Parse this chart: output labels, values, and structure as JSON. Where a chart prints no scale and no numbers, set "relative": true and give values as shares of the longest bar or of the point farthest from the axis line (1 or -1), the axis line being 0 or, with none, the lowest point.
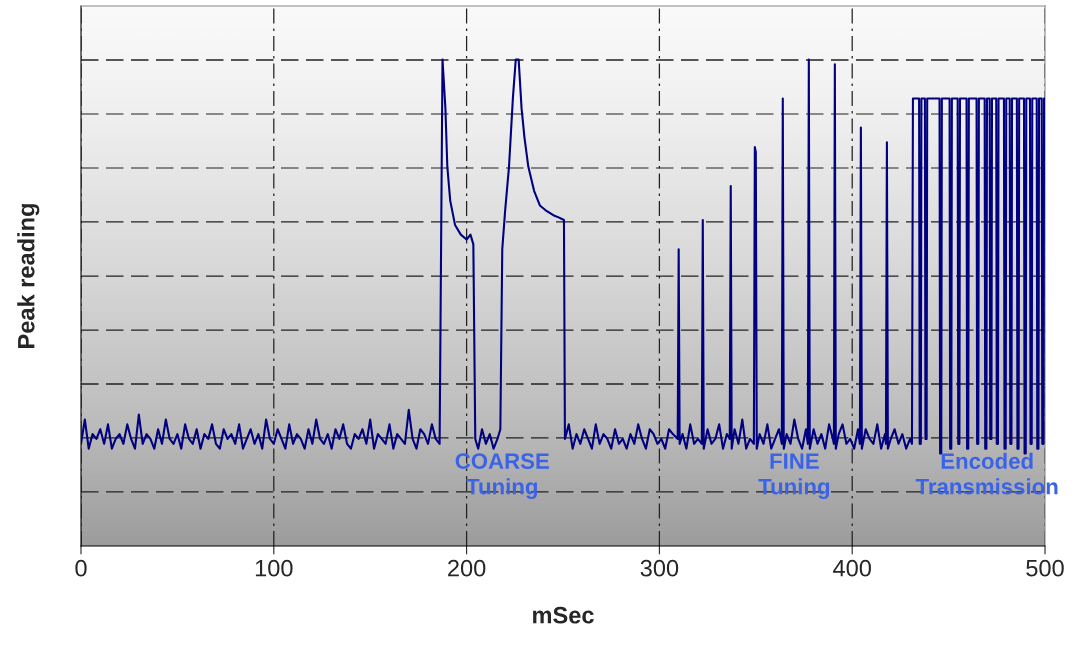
{
  "chart_data": {
    "type": "line",
    "relative": true,
    "xlabel": "mSec",
    "ylabel": "Peak reading",
    "xlim": [
      0,
      500
    ],
    "xticks": [
      0,
      100,
      200,
      300,
      400,
      500
    ],
    "grid": true,
    "marker": "none",
    "line_style": "solid",
    "legend": false,
    "annotations": [
      "COARSE\nTuning",
      "FINE\nTuning",
      "Encoded\nTransmission"
    ],
    "series": [
      {
        "color": "#000080",
        "x": [
          0,
          2,
          4,
          6,
          8,
          10,
          12,
          14,
          16,
          18,
          20,
          22,
          24,
          26,
          28,
          30,
          32,
          34,
          36,
          38,
          40,
          42,
          44,
          46,
          48,
          50,
          52,
          54,
          56,
          58,
          60,
          62,
          64,
          66,
          68,
          70,
          72,
          74,
          76,
          78,
          80,
          82,
          84,
          86,
          88,
          90,
          92,
          94,
          96,
          98,
          100,
          102,
          104,
          106,
          108,
          110,
          112,
          114,
          116,
          118,
          120,
          122,
          124,
          126,
          128,
          130,
          132,
          134,
          136,
          138,
          140,
          142,
          144,
          146,
          148,
          150,
          152,
          154,
          156,
          158,
          160,
          162,
          164,
          166,
          168,
          170,
          172,
          174,
          176,
          178,
          180,
          182,
          184,
          186,
          187.5,
          189,
          190,
          191.5,
          194,
          197,
          200,
          202,
          203.5,
          204.5,
          206,
          208,
          210,
          212,
          214,
          216,
          217.5,
          218.5,
          220,
          222,
          224,
          225.5,
          227,
          228.5,
          230,
          232,
          235,
          238,
          241,
          245,
          248,
          250.5,
          251,
          253,
          255,
          257,
          259,
          261,
          263,
          265,
          267,
          269,
          271,
          273,
          275,
          277,
          279,
          281,
          283,
          285,
          287,
          289,
          291,
          293,
          295,
          297,
          299,
          301,
          303,
          305,
          307,
          309.5,
          310,
          310.5,
          312,
          314,
          316,
          318,
          320,
          322,
          322.5,
          323,
          325,
          327,
          329,
          331,
          333,
          335,
          336.5,
          337,
          337.5,
          339,
          341,
          343,
          345,
          347,
          349,
          349.5,
          350,
          350.5,
          352,
          354,
          356,
          358,
          360,
          362,
          363.5,
          364,
          364.5,
          366,
          368,
          370,
          372,
          374,
          376,
          377,
          377.5,
          378,
          380,
          382,
          384,
          386,
          388,
          390,
          390.5,
          391,
          391.5,
          393,
          395,
          397,
          399,
          401,
          403,
          404,
          404.5,
          405,
          407,
          409,
          411,
          413,
          415,
          417,
          417.5,
          418,
          418.5,
          420,
          422,
          424,
          426,
          428,
          430,
          431,
          431.5,
          434.7,
          435,
          435.6,
          435.9,
          437.7,
          438,
          438.6,
          438.9,
          445.3,
          445.6,
          446.2,
          446.5,
          450.5,
          450.8,
          451.4,
          451.7,
          454.7,
          455,
          455.6,
          455.9,
          459.3,
          459.6,
          460.2,
          460.5,
          464.5,
          464.8,
          465.4,
          465.7,
          468.7,
          469,
          469.6,
          469.9,
          471.3,
          471.6,
          472.2,
          472.5,
          474.7,
          475,
          475.6,
          475.9,
          478.7,
          479,
          479.6,
          479.9,
          481.7,
          482,
          482.6,
          482.9,
          485.4,
          485.7,
          486.3,
          486.6,
          489.1,
          489.4,
          490,
          490.3,
          492.2,
          492.5,
          493.1,
          493.4,
          495.7,
          496,
          496.6,
          496.9,
          498.3,
          498.6,
          499.2,
          499.5,
          500
        ],
        "values": [
          0.21,
          0.26,
          0.2,
          0.23,
          0.22,
          0.24,
          0.21,
          0.25,
          0.2,
          0.22,
          0.23,
          0.21,
          0.25,
          0.22,
          0.2,
          0.27,
          0.21,
          0.23,
          0.22,
          0.2,
          0.24,
          0.21,
          0.26,
          0.22,
          0.21,
          0.23,
          0.2,
          0.25,
          0.22,
          0.21,
          0.24,
          0.2,
          0.23,
          0.22,
          0.25,
          0.21,
          0.2,
          0.24,
          0.22,
          0.23,
          0.21,
          0.25,
          0.2,
          0.22,
          0.24,
          0.21,
          0.23,
          0.2,
          0.26,
          0.22,
          0.21,
          0.24,
          0.22,
          0.2,
          0.25,
          0.21,
          0.23,
          0.22,
          0.2,
          0.24,
          0.21,
          0.26,
          0.22,
          0.21,
          0.23,
          0.2,
          0.24,
          0.22,
          0.25,
          0.21,
          0.2,
          0.23,
          0.22,
          0.24,
          0.21,
          0.26,
          0.2,
          0.23,
          0.22,
          0.21,
          0.25,
          0.2,
          0.23,
          0.22,
          0.21,
          0.28,
          0.22,
          0.2,
          0.24,
          0.23,
          0.21,
          0.25,
          0.22,
          0.21,
          1.0,
          0.9,
          0.78,
          0.71,
          0.66,
          0.64,
          0.63,
          0.64,
          0.62,
          0.22,
          0.2,
          0.24,
          0.21,
          0.23,
          0.2,
          0.22,
          0.24,
          0.61,
          0.69,
          0.78,
          0.92,
          1.0,
          1.0,
          0.9,
          0.84,
          0.78,
          0.73,
          0.7,
          0.69,
          0.68,
          0.675,
          0.67,
          0.22,
          0.25,
          0.2,
          0.23,
          0.21,
          0.24,
          0.22,
          0.2,
          0.25,
          0.21,
          0.23,
          0.22,
          0.2,
          0.24,
          0.21,
          0.22,
          0.2,
          0.23,
          0.21,
          0.25,
          0.22,
          0.2,
          0.24,
          0.23,
          0.21,
          0.22,
          0.2,
          0.24,
          0.23,
          0.22,
          0.61,
          0.21,
          0.23,
          0.2,
          0.25,
          0.21,
          0.22,
          0.21,
          0.67,
          0.2,
          0.24,
          0.21,
          0.22,
          0.25,
          0.2,
          0.23,
          0.22,
          0.74,
          0.2,
          0.24,
          0.21,
          0.26,
          0.2,
          0.22,
          0.21,
          0.82,
          0.81,
          0.2,
          0.23,
          0.21,
          0.25,
          0.2,
          0.22,
          0.24,
          0.21,
          0.92,
          0.2,
          0.23,
          0.21,
          0.26,
          0.22,
          0.2,
          0.24,
          0.21,
          1.0,
          0.2,
          0.24,
          0.21,
          0.23,
          0.2,
          0.25,
          0.22,
          0.21,
          0.99,
          0.2,
          0.23,
          0.25,
          0.21,
          0.22,
          0.2,
          0.24,
          0.21,
          0.86,
          0.2,
          0.24,
          0.22,
          0.21,
          0.25,
          0.2,
          0.23,
          0.21,
          0.83,
          0.2,
          0.22,
          0.24,
          0.21,
          0.23,
          0.2,
          0.22,
          0.21,
          0.92,
          0.92,
          0.21,
          0.21,
          0.92,
          0.92,
          0.22,
          0.22,
          0.92,
          0.92,
          0.19,
          0.19,
          0.92,
          0.92,
          0.2,
          0.2,
          0.92,
          0.92,
          0.21,
          0.21,
          0.92,
          0.92,
          0.2,
          0.2,
          0.92,
          0.92,
          0.21,
          0.21,
          0.92,
          0.92,
          0.2,
          0.2,
          0.92,
          0.92,
          0.22,
          0.22,
          0.92,
          0.92,
          0.21,
          0.21,
          0.92,
          0.92,
          0.2,
          0.2,
          0.92,
          0.92,
          0.21,
          0.21,
          0.92,
          0.92,
          0.2,
          0.2,
          0.92,
          0.92,
          0.19,
          0.19,
          0.92,
          0.92,
          0.21,
          0.21,
          0.92,
          0.92,
          0.2,
          0.2,
          0.92,
          0.92,
          0.21,
          0.21,
          0.92,
          0.92
        ]
      }
    ]
  }
}
